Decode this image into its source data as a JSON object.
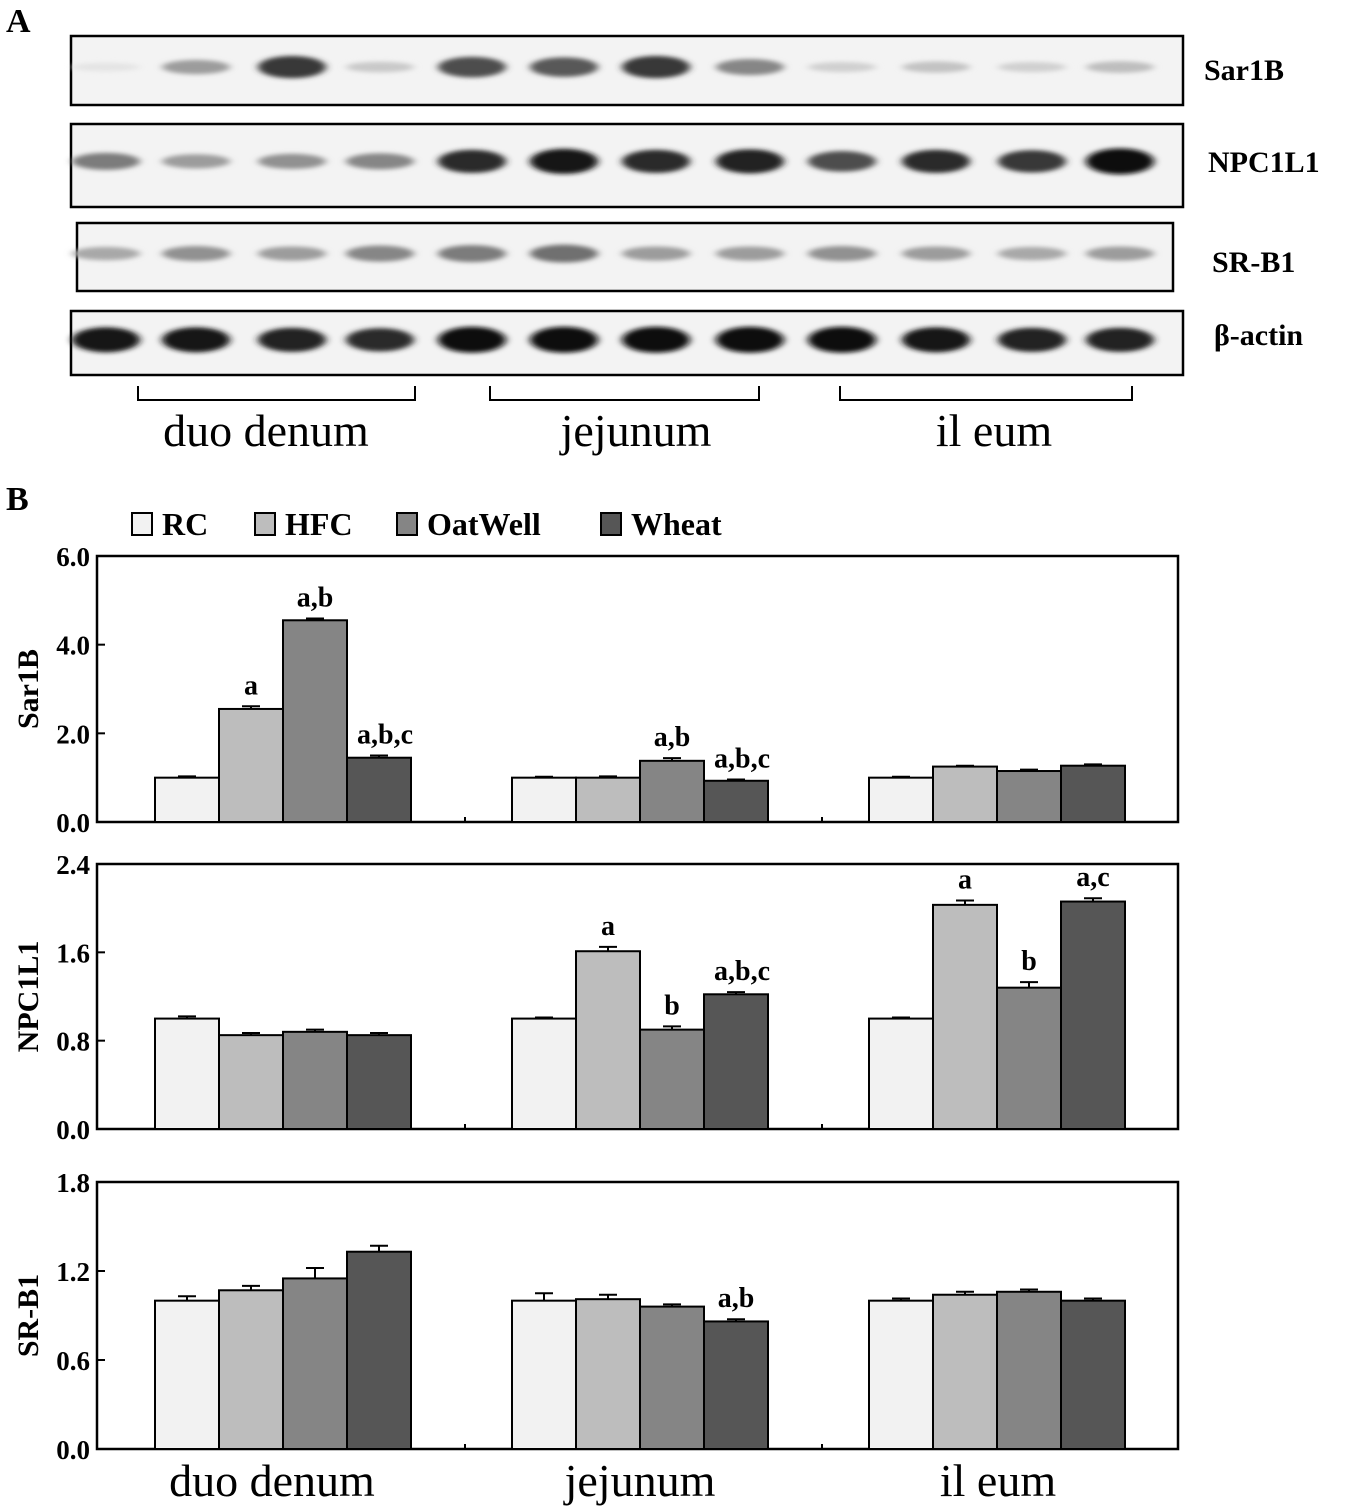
{
  "panel_a": {
    "letter": "A",
    "blots": [
      {
        "label": "Sar1B",
        "bands": [
          0.03,
          0.35,
          0.8,
          0.15,
          0.7,
          0.65,
          0.8,
          0.45,
          0.12,
          0.18,
          0.12,
          0.2
        ]
      },
      {
        "label": "NPC1L1",
        "bands": [
          0.5,
          0.35,
          0.4,
          0.45,
          0.85,
          0.95,
          0.85,
          0.9,
          0.7,
          0.85,
          0.8,
          1.0
        ]
      },
      {
        "label": "SR-B1",
        "bands": [
          0.3,
          0.4,
          0.35,
          0.45,
          0.5,
          0.55,
          0.35,
          0.35,
          0.4,
          0.35,
          0.3,
          0.35
        ]
      },
      {
        "label": "β-actin",
        "bands": [
          0.95,
          0.95,
          0.9,
          0.85,
          1.0,
          1.0,
          1.0,
          1.0,
          1.0,
          0.95,
          0.9,
          0.9
        ]
      }
    ],
    "regions": [
      "duo denum",
      "jejunum",
      "il eum"
    ]
  },
  "panel_b": {
    "letter": "B",
    "legend": [
      {
        "label": "RC",
        "color": "#f2f2f2"
      },
      {
        "label": "HFC",
        "color": "#bdbdbd"
      },
      {
        "label": "OatWell",
        "color": "#858585"
      },
      {
        "label": "Wheat",
        "color": "#565656"
      }
    ]
  },
  "colors": {
    "RC": "#f2f2f2",
    "HFC": "#bdbdbd",
    "OatWell": "#858585",
    "Wheat": "#565656"
  },
  "chart_data": [
    {
      "type": "bar",
      "ylabel": "Sar1B",
      "ylim": [
        0,
        6
      ],
      "yticks": [
        "0.0",
        "2.0",
        "4.0",
        "6.0"
      ],
      "categories": [
        "duo denum",
        "jejunum",
        "il eum"
      ],
      "series": [
        {
          "name": "RC",
          "values": [
            1.0,
            1.0,
            1.0
          ],
          "errors": [
            0.03,
            0.02,
            0.02
          ]
        },
        {
          "name": "HFC",
          "values": [
            2.55,
            1.0,
            1.25
          ],
          "errors": [
            0.06,
            0.03,
            0.02
          ]
        },
        {
          "name": "OatWell",
          "values": [
            4.55,
            1.38,
            1.15
          ],
          "errors": [
            0.04,
            0.06,
            0.03
          ]
        },
        {
          "name": "Wheat",
          "values": [
            1.45,
            0.93,
            1.27
          ],
          "errors": [
            0.05,
            0.03,
            0.03
          ]
        }
      ],
      "annotations": [
        {
          "category": 0,
          "series": 1,
          "text": "a"
        },
        {
          "category": 0,
          "series": 2,
          "text": "a,b"
        },
        {
          "category": 0,
          "series": 3,
          "text": "a,b,c"
        },
        {
          "category": 1,
          "series": 2,
          "text": "a,b"
        },
        {
          "category": 1,
          "series": 3,
          "text": "a,b,c"
        }
      ]
    },
    {
      "type": "bar",
      "ylabel": "NPC1L1",
      "ylim": [
        0,
        2.4
      ],
      "yticks": [
        "0.0",
        "0.8",
        "1.6",
        "2.4"
      ],
      "categories": [
        "duo denum",
        "jejunum",
        "il eum"
      ],
      "series": [
        {
          "name": "RC",
          "values": [
            1.0,
            1.0,
            1.0
          ],
          "errors": [
            0.02,
            0.01,
            0.01
          ]
        },
        {
          "name": "HFC",
          "values": [
            0.85,
            1.61,
            2.03
          ],
          "errors": [
            0.02,
            0.04,
            0.04
          ]
        },
        {
          "name": "OatWell",
          "values": [
            0.88,
            0.9,
            1.28
          ],
          "errors": [
            0.02,
            0.03,
            0.05
          ]
        },
        {
          "name": "Wheat",
          "values": [
            0.85,
            1.22,
            2.06
          ],
          "errors": [
            0.02,
            0.02,
            0.03
          ]
        }
      ],
      "annotations": [
        {
          "category": 1,
          "series": 1,
          "text": "a"
        },
        {
          "category": 1,
          "series": 2,
          "text": "b"
        },
        {
          "category": 1,
          "series": 3,
          "text": "a,b,c"
        },
        {
          "category": 2,
          "series": 1,
          "text": "a"
        },
        {
          "category": 2,
          "series": 2,
          "text": "b"
        },
        {
          "category": 2,
          "series": 3,
          "text": "a,c"
        }
      ]
    },
    {
      "type": "bar",
      "ylabel": "SR-B1",
      "ylim": [
        0,
        1.8
      ],
      "yticks": [
        "0.0",
        "0.6",
        "1.2",
        "1.8"
      ],
      "categories": [
        "duo denum",
        "jejunum",
        "il eum"
      ],
      "series": [
        {
          "name": "RC",
          "values": [
            1.0,
            1.0,
            1.0
          ],
          "errors": [
            0.03,
            0.05,
            0.015
          ]
        },
        {
          "name": "HFC",
          "values": [
            1.07,
            1.01,
            1.04
          ],
          "errors": [
            0.03,
            0.03,
            0.02
          ]
        },
        {
          "name": "OatWell",
          "values": [
            1.15,
            0.96,
            1.06
          ],
          "errors": [
            0.07,
            0.015,
            0.015
          ]
        },
        {
          "name": "Wheat",
          "values": [
            1.33,
            0.86,
            1.0
          ],
          "errors": [
            0.04,
            0.015,
            0.015
          ]
        }
      ],
      "annotations": [
        {
          "category": 1,
          "series": 3,
          "text": "a,b"
        }
      ]
    }
  ]
}
